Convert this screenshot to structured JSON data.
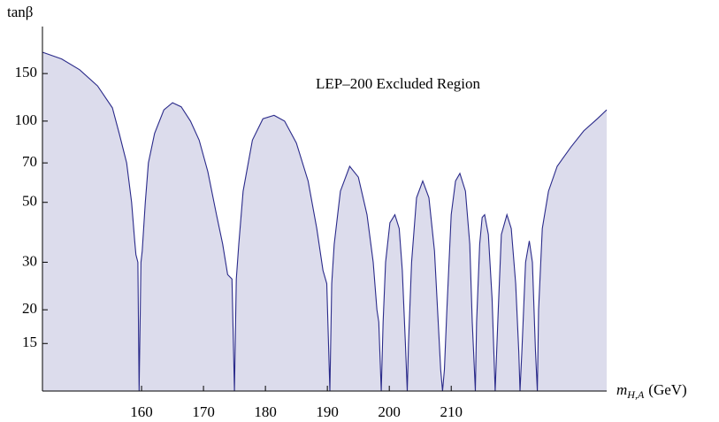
{
  "chart_data": {
    "type": "area",
    "ylabel": "tanβ",
    "xlabel_main": "m",
    "xlabel_sub": "H,A",
    "xlabel_unit": "(GeV)",
    "annotation": "LEP–200 Excluded Region",
    "log_y": true,
    "xlim": [
      144,
      235.1
    ],
    "ylim": [
      10,
      224
    ],
    "xticks": [
      160,
      170,
      180,
      190,
      200,
      210
    ],
    "yticks": [
      15,
      20,
      30,
      50,
      70,
      100,
      150
    ],
    "fill_color": "#dcdcec",
    "line_color": "#2a2a8a",
    "x": [
      144.0,
      147.1,
      150.0,
      152.9,
      155.3,
      156.4,
      157.6,
      158.4,
      158.9,
      159.1,
      159.4,
      159.6,
      159.9,
      160.1,
      160.6,
      161.1,
      162.1,
      163.6,
      165.0,
      166.4,
      167.9,
      169.3,
      170.7,
      172.1,
      173.1,
      173.9,
      174.6,
      175.0,
      175.3,
      175.7,
      176.4,
      177.9,
      179.6,
      181.4,
      183.1,
      185.0,
      186.9,
      188.3,
      189.3,
      189.9,
      190.4,
      190.7,
      191.1,
      192.1,
      193.6,
      195.0,
      196.4,
      197.4,
      198.0,
      198.3,
      198.7,
      199.0,
      199.4,
      200.1,
      200.9,
      201.6,
      202.1,
      202.6,
      202.9,
      203.1,
      203.6,
      204.4,
      205.4,
      206.4,
      207.3,
      207.9,
      208.3,
      208.6,
      208.9,
      209.3,
      210.0,
      210.7,
      211.4,
      212.3,
      213.0,
      213.4,
      213.9,
      214.1,
      214.6,
      215.0,
      215.4,
      216.0,
      216.6,
      217.1,
      217.6,
      218.1,
      219.0,
      219.7,
      220.4,
      220.9,
      221.1,
      221.4,
      222.0,
      222.6,
      223.1,
      223.6,
      223.9,
      224.1,
      224.7,
      225.7,
      227.1,
      229.3,
      231.4,
      233.6,
      235.1
    ],
    "values": [
      180,
      170,
      155,
      135,
      112,
      90,
      70,
      50,
      36,
      32,
      30,
      10,
      30,
      33,
      50,
      70,
      90,
      110,
      117,
      113,
      100,
      85,
      65,
      45,
      35,
      27,
      26,
      10,
      26,
      35,
      55,
      85,
      102,
      105,
      100,
      83,
      60,
      40,
      28,
      25,
      10,
      25,
      35,
      55,
      68,
      62,
      45,
      30,
      20,
      18,
      10,
      18,
      30,
      42,
      45,
      40,
      28,
      15,
      10,
      15,
      30,
      52,
      60,
      52,
      33,
      18,
      12,
      10,
      12,
      20,
      45,
      60,
      64,
      55,
      35,
      18,
      10,
      18,
      35,
      44,
      45,
      38,
      22,
      10,
      20,
      38,
      45,
      40,
      25,
      14,
      10,
      14,
      30,
      36,
      30,
      14,
      10,
      20,
      40,
      55,
      68,
      80,
      92,
      102,
      110
    ]
  }
}
